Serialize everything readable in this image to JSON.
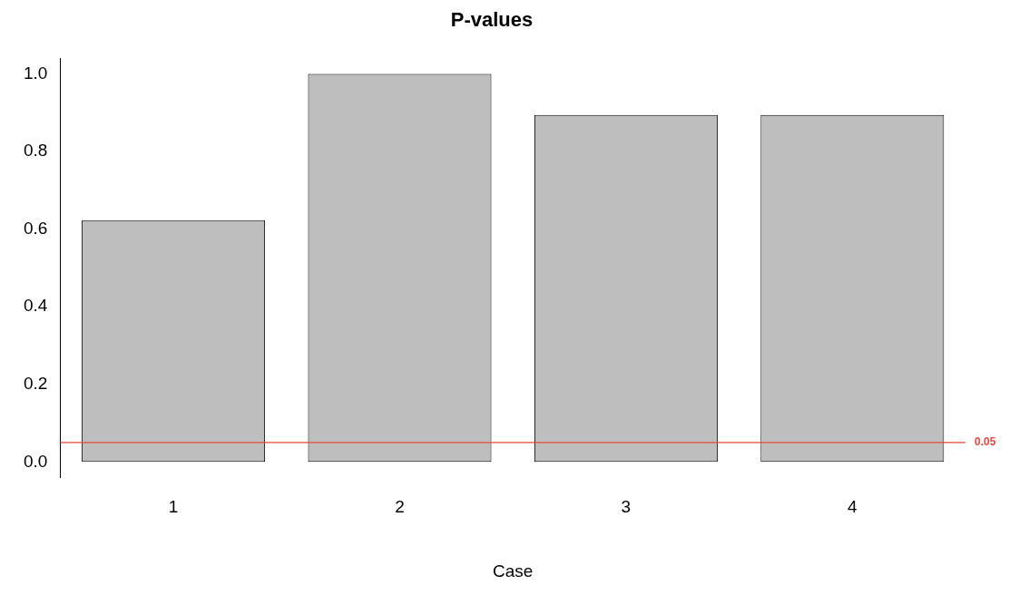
{
  "chart_data": {
    "type": "bar",
    "title": "P-values",
    "xlabel": "Case",
    "categories": [
      "1",
      "2",
      "3",
      "4"
    ],
    "values": [
      0.623,
      1.0,
      0.894,
      0.894
    ],
    "color": "#bebebe",
    "ylim": [
      -0.04,
      1.04
    ],
    "yticks": [
      {
        "value": 0,
        "label": "0.0"
      },
      0.2,
      0.4,
      0.6,
      0.8,
      {
        "value": 1,
        "label": "1.0"
      }
    ],
    "grid": false,
    "legend": false,
    "ref_lines": [
      {
        "axis": "y",
        "value": 0.05,
        "label": "0.05",
        "color": "#e8453c"
      }
    ]
  }
}
